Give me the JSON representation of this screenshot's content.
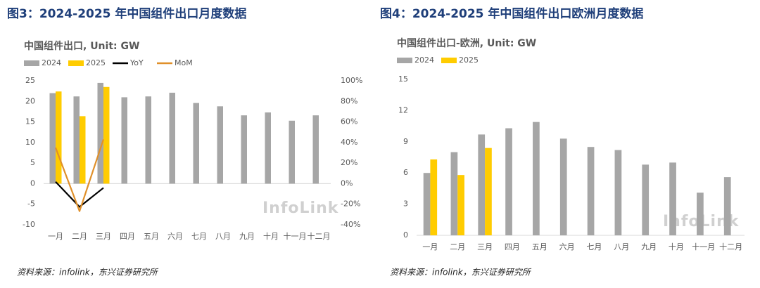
{
  "chart_data": [
    {
      "type": "bar",
      "title": "图3：2024-2025 年中国组件出口月度数据",
      "subtitle": "中国组件出口, Unit: GW",
      "watermark": "InfoLink",
      "source": "资料来源：infolink，东兴证券研究所",
      "categories": [
        "一月",
        "二月",
        "三月",
        "四月",
        "五月",
        "六月",
        "七月",
        "八月",
        "九月",
        "十月",
        "十一月",
        "十二月"
      ],
      "series": [
        {
          "name": "2024",
          "type": "bar",
          "color": "#a6a6a6",
          "values": [
            22,
            21.2,
            24.5,
            21,
            21.2,
            22.1,
            19.6,
            18.8,
            16.6,
            17.3,
            15.3,
            16.6
          ]
        },
        {
          "name": "2025",
          "type": "bar",
          "color": "#ffcc00",
          "values": [
            22.4,
            16.4,
            23.5,
            null,
            null,
            null,
            null,
            null,
            null,
            null,
            null,
            null
          ]
        },
        {
          "name": "YoY",
          "type": "line",
          "axis": "y2",
          "color": "#000000",
          "values": [
            1.8,
            -22.6,
            -4.1,
            null,
            null,
            null,
            null,
            null,
            null,
            null,
            null,
            null
          ]
        },
        {
          "name": "MoM",
          "type": "line",
          "axis": "y2",
          "color": "#e0902a",
          "values": [
            35,
            -26.8,
            43,
            null,
            null,
            null,
            null,
            null,
            null,
            null,
            null,
            null
          ]
        }
      ],
      "ylim": [
        -10,
        25
      ],
      "yticks": [
        -10,
        -5,
        0,
        5,
        10,
        15,
        20,
        25
      ],
      "y2lim": [
        -40,
        100
      ],
      "y2ticks": [
        {
          "value": -40,
          "label": "-40%"
        },
        {
          "value": -20,
          "label": "-20%"
        },
        {
          "value": 0,
          "label": "0%"
        },
        {
          "value": 20,
          "label": "20%"
        },
        {
          "value": 40,
          "label": "40%"
        },
        {
          "value": 60,
          "label": "60%"
        },
        {
          "value": 80,
          "label": "80%"
        },
        {
          "value": 100,
          "label": "100%"
        }
      ],
      "grid": false
    },
    {
      "type": "bar",
      "title": "图4：2024-2025 年中国组件出口欧洲月度数据",
      "subtitle": "中国组件出口-欧洲, Unit: GW",
      "watermark": "InfoLink",
      "source": "资料来源：infolink，东兴证券研究所",
      "categories": [
        "一月",
        "二月",
        "三月",
        "四月",
        "五月",
        "六月",
        "七月",
        "八月",
        "九月",
        "十月",
        "十一月",
        "十二月"
      ],
      "series": [
        {
          "name": "2024",
          "type": "bar",
          "color": "#a6a6a6",
          "values": [
            6.0,
            8.0,
            9.7,
            10.3,
            10.9,
            9.3,
            8.5,
            8.2,
            6.8,
            7.0,
            4.1,
            5.6
          ]
        },
        {
          "name": "2025",
          "type": "bar",
          "color": "#ffcc00",
          "values": [
            7.3,
            5.8,
            8.4,
            null,
            null,
            null,
            null,
            null,
            null,
            null,
            null,
            null
          ]
        }
      ],
      "ylim": [
        0,
        15
      ],
      "yticks": [
        0,
        3,
        6,
        9,
        12,
        15
      ],
      "grid": false
    }
  ]
}
